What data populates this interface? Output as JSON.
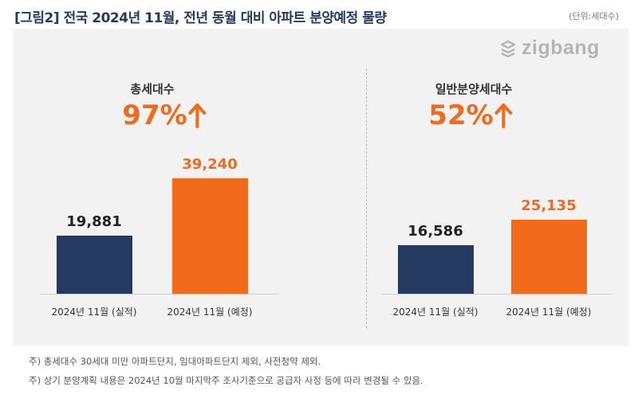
{
  "title": "[그림2] 전국 2024년 11월, 전년 동월 대비 아파트 분양예정 물량",
  "unit": "(단위:세대수)",
  "brand": "zigbang",
  "colors": {
    "actual": "#243a60",
    "planned": "#f26a1b",
    "accent": "#f26a1b"
  },
  "chart_data": [
    {
      "type": "bar",
      "group_label": "총세대수",
      "change": "97%",
      "categories": [
        "2024년 11월 (실적)",
        "2024년 11월 (예정)"
      ],
      "values": [
        19881,
        39240
      ],
      "value_labels": [
        "19,881",
        "39,240"
      ],
      "ylim": [
        0,
        45000
      ]
    },
    {
      "type": "bar",
      "group_label": "일반분양세대수",
      "change": "52%",
      "categories": [
        "2024년 11월 (실적)",
        "2024년 11월 (예정)"
      ],
      "values": [
        16586,
        25135
      ],
      "value_labels": [
        "16,586",
        "25,135"
      ],
      "ylim": [
        0,
        45000
      ]
    }
  ],
  "notes": [
    "주) 총세대수 30세대 미만 아파트단지, 임대아파트단지 제외, 사전청약 제외.",
    "주) 상기 분양계획 내용은 2024년 10월 마지막주 조사기준으로 공급자 사정 등에 따라 변경될 수 있음."
  ]
}
